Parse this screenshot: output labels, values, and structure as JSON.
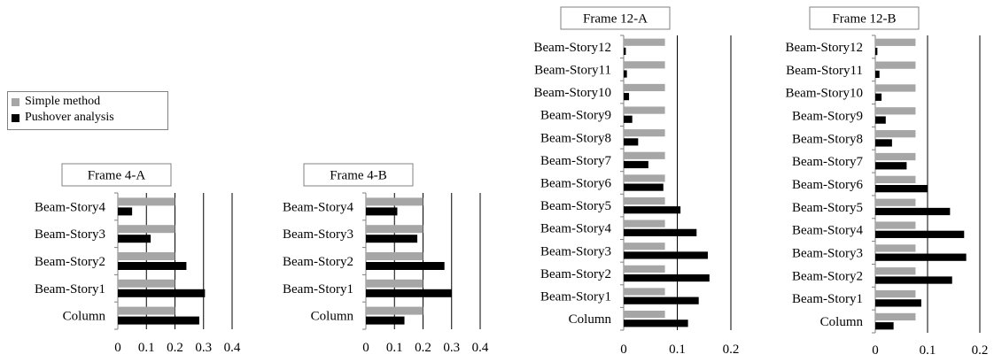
{
  "colors": {
    "simple": "#a6a6a6",
    "pushover": "#000000",
    "grid": "#000000"
  },
  "legend": {
    "entries": [
      {
        "label": "Simple method",
        "color": "#a6a6a6"
      },
      {
        "label": "Pushover analysis",
        "color": "#000000"
      }
    ]
  },
  "chart_data": [
    {
      "type": "bar",
      "orientation": "horizontal",
      "title": "Frame 4-A",
      "categories": [
        "Beam-Story4",
        "Beam-Story3",
        "Beam-Story2",
        "Beam-Story1",
        "Column"
      ],
      "series": [
        {
          "name": "Simple method",
          "values": [
            0.2,
            0.2,
            0.2,
            0.2,
            0.2
          ]
        },
        {
          "name": "Pushover analysis",
          "values": [
            0.05,
            0.115,
            0.24,
            0.305,
            0.285
          ]
        }
      ],
      "xlim": [
        0,
        0.4
      ],
      "xticks": [
        "0",
        "0.1",
        "0.2",
        "0.3",
        "0.4"
      ],
      "grid": true
    },
    {
      "type": "bar",
      "orientation": "horizontal",
      "title": "Frame 4-B",
      "categories": [
        "Beam-Story4",
        "Beam-Story3",
        "Beam-Story2",
        "Beam-Story1",
        "Column"
      ],
      "series": [
        {
          "name": "Simple method",
          "values": [
            0.2,
            0.2,
            0.2,
            0.2,
            0.2
          ]
        },
        {
          "name": "Pushover analysis",
          "values": [
            0.11,
            0.18,
            0.275,
            0.3,
            0.135
          ]
        }
      ],
      "xlim": [
        0,
        0.4
      ],
      "xticks": [
        "0",
        "0.1",
        "0.2",
        "0.3",
        "0.4"
      ],
      "grid": true
    },
    {
      "type": "bar",
      "orientation": "horizontal",
      "title": "Frame 12-A",
      "categories": [
        "Beam-Story12",
        "Beam-Story11",
        "Beam-Story10",
        "Beam-Story9",
        "Beam-Story8",
        "Beam-Story7",
        "Beam-Story6",
        "Beam-Story5",
        "Beam-Story4",
        "Beam-Story3",
        "Beam-Story2",
        "Beam-Story1",
        "Column"
      ],
      "series": [
        {
          "name": "Simple method",
          "values": [
            0.077,
            0.077,
            0.077,
            0.077,
            0.077,
            0.077,
            0.077,
            0.077,
            0.077,
            0.077,
            0.077,
            0.077,
            0.077
          ]
        },
        {
          "name": "Pushover analysis",
          "values": [
            0.004,
            0.006,
            0.01,
            0.016,
            0.027,
            0.046,
            0.074,
            0.106,
            0.136,
            0.157,
            0.16,
            0.14,
            0.12
          ]
        }
      ],
      "xlim": [
        0,
        0.2
      ],
      "xticks": [
        "0",
        "0.1",
        "0.2"
      ],
      "grid": true
    },
    {
      "type": "bar",
      "orientation": "horizontal",
      "title": "Frame 12-B",
      "categories": [
        "Beam-Story12",
        "Beam-Story11",
        "Beam-Story10",
        "Beam-Story9",
        "Beam-Story8",
        "Beam-Story7",
        "Beam-Story6",
        "Beam-Story5",
        "Beam-Story4",
        "Beam-Story3",
        "Beam-Story2",
        "Beam-Story1",
        "Column"
      ],
      "series": [
        {
          "name": "Simple method",
          "values": [
            0.077,
            0.077,
            0.077,
            0.077,
            0.077,
            0.077,
            0.077,
            0.077,
            0.077,
            0.077,
            0.077,
            0.077,
            0.077
          ]
        },
        {
          "name": "Pushover analysis",
          "values": [
            0.004,
            0.008,
            0.012,
            0.02,
            0.032,
            0.06,
            0.1,
            0.143,
            0.17,
            0.174,
            0.147,
            0.088,
            0.035
          ]
        }
      ],
      "xlim": [
        0,
        0.2
      ],
      "xticks": [
        "0",
        "0.1",
        "0.2"
      ],
      "grid": true
    }
  ]
}
